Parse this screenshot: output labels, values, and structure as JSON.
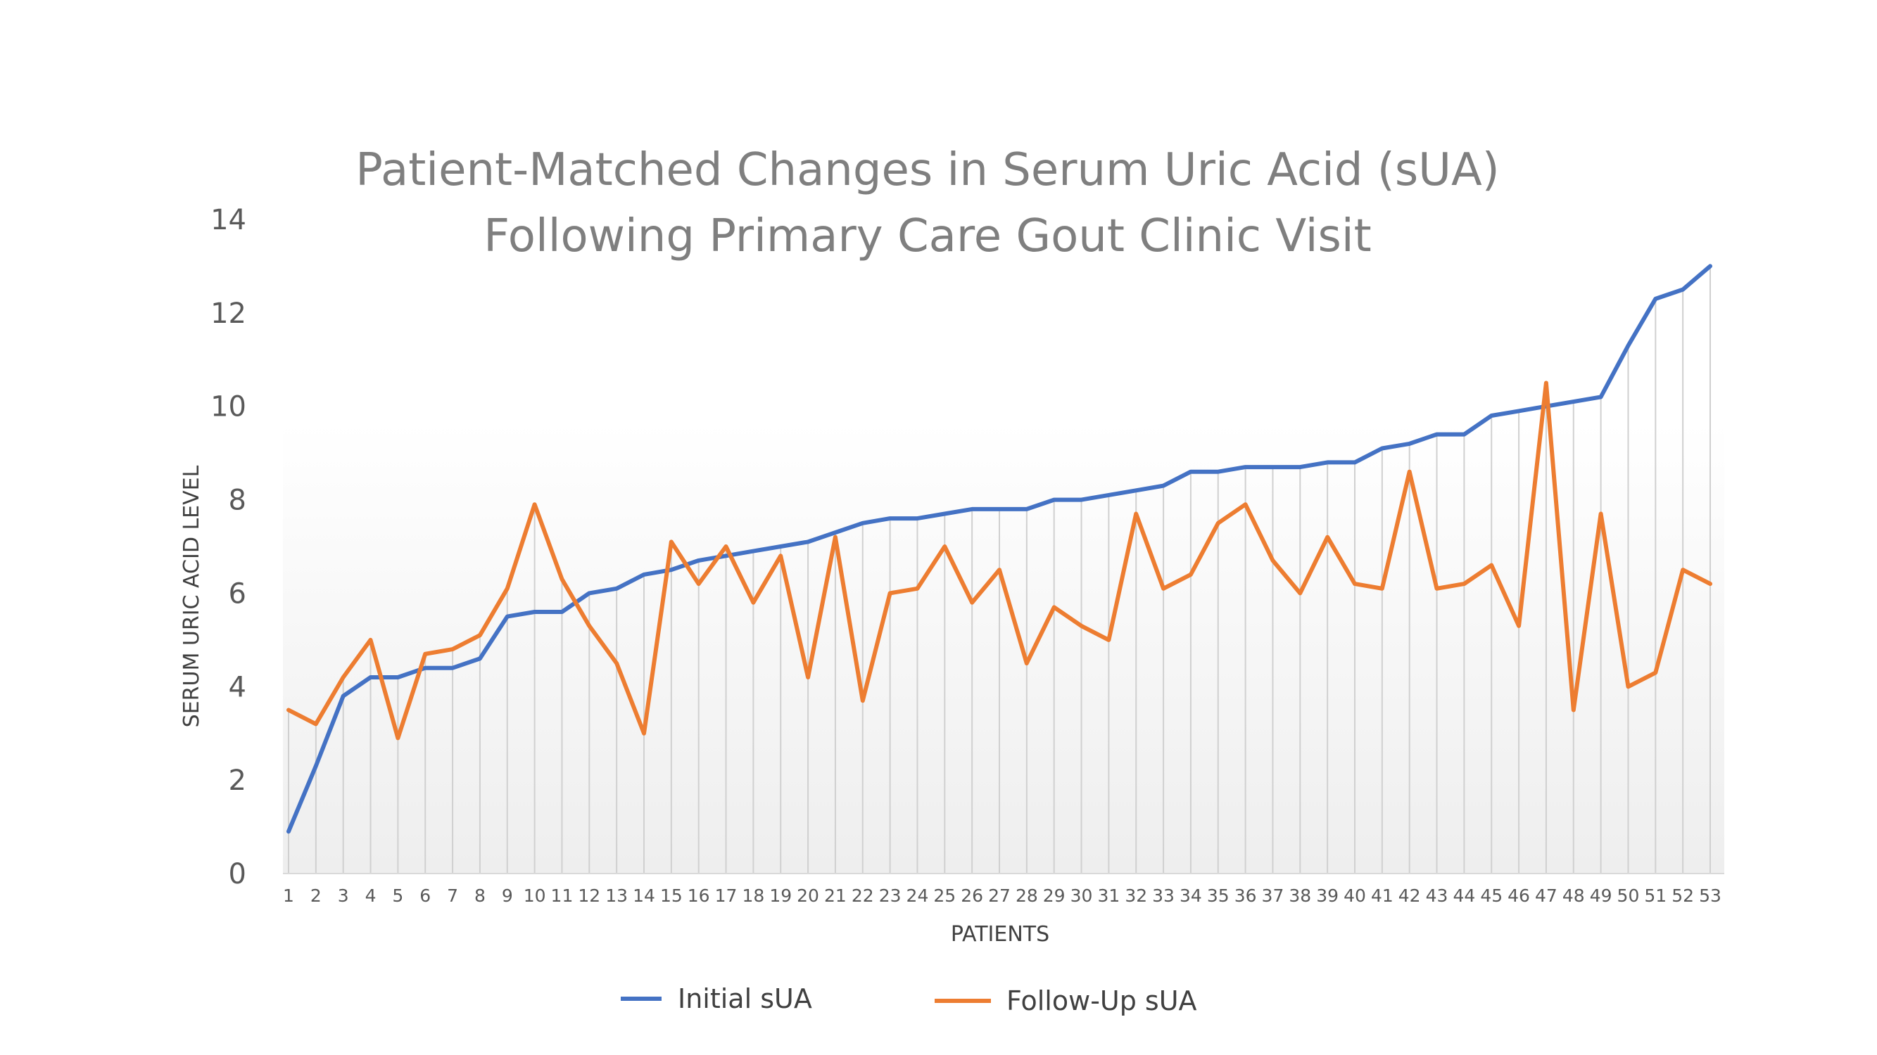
{
  "chart_data": {
    "type": "line",
    "title": "Patient-Matched Changes in Serum Uric Acid (sUA)",
    "subtitle": "Following Primary Care Gout Clinic Visit",
    "xlabel": "PATIENTS",
    "ylabel": "SERUM URIC ACID LEVEL",
    "ylim": [
      0,
      14
    ],
    "yticks": [
      0,
      2,
      4,
      6,
      8,
      10,
      12,
      14
    ],
    "grid": "vertical drop lines at each patient",
    "legend_position": "bottom",
    "categories": [
      "1",
      "2",
      "3",
      "4",
      "5",
      "6",
      "7",
      "8",
      "9",
      "10",
      "11",
      "12",
      "13",
      "14",
      "15",
      "16",
      "17",
      "18",
      "19",
      "20",
      "21",
      "22",
      "23",
      "24",
      "25",
      "26",
      "27",
      "28",
      "29",
      "30",
      "31",
      "32",
      "33",
      "34",
      "35",
      "36",
      "37",
      "38",
      "39",
      "40",
      "41",
      "42",
      "43",
      "44",
      "45",
      "46",
      "47",
      "48",
      "49",
      "50",
      "51",
      "52",
      "53"
    ],
    "series": [
      {
        "name": "Initial sUA",
        "color": "#4472c4",
        "values": [
          0.9,
          2.3,
          3.8,
          4.2,
          4.2,
          4.4,
          4.4,
          4.6,
          5.5,
          5.6,
          5.6,
          6.0,
          6.1,
          6.4,
          6.5,
          6.7,
          6.8,
          6.9,
          7.0,
          7.1,
          7.3,
          7.5,
          7.6,
          7.6,
          7.7,
          7.8,
          7.8,
          7.8,
          8.0,
          8.0,
          8.1,
          8.2,
          8.3,
          8.6,
          8.6,
          8.7,
          8.7,
          8.7,
          8.8,
          8.8,
          9.1,
          9.2,
          9.4,
          9.4,
          9.8,
          9.9,
          10.0,
          10.1,
          10.2,
          11.3,
          12.3,
          12.5,
          13.0
        ]
      },
      {
        "name": "Follow-Up sUA",
        "color": "#ed7d31",
        "values": [
          3.5,
          3.2,
          4.2,
          5.0,
          2.9,
          4.7,
          4.8,
          5.1,
          6.1,
          7.9,
          6.3,
          5.3,
          4.5,
          3.0,
          7.1,
          6.2,
          7.0,
          5.8,
          6.8,
          4.2,
          7.2,
          3.7,
          6.0,
          6.1,
          7.0,
          5.8,
          6.5,
          4.5,
          5.7,
          5.3,
          5.0,
          7.7,
          6.1,
          6.4,
          7.5,
          7.9,
          6.7,
          6.0,
          7.2,
          6.2,
          6.1,
          8.6,
          6.1,
          6.2,
          6.6,
          5.3,
          10.5,
          3.5,
          7.7,
          4.0,
          4.3,
          6.5,
          6.2
        ]
      }
    ]
  }
}
